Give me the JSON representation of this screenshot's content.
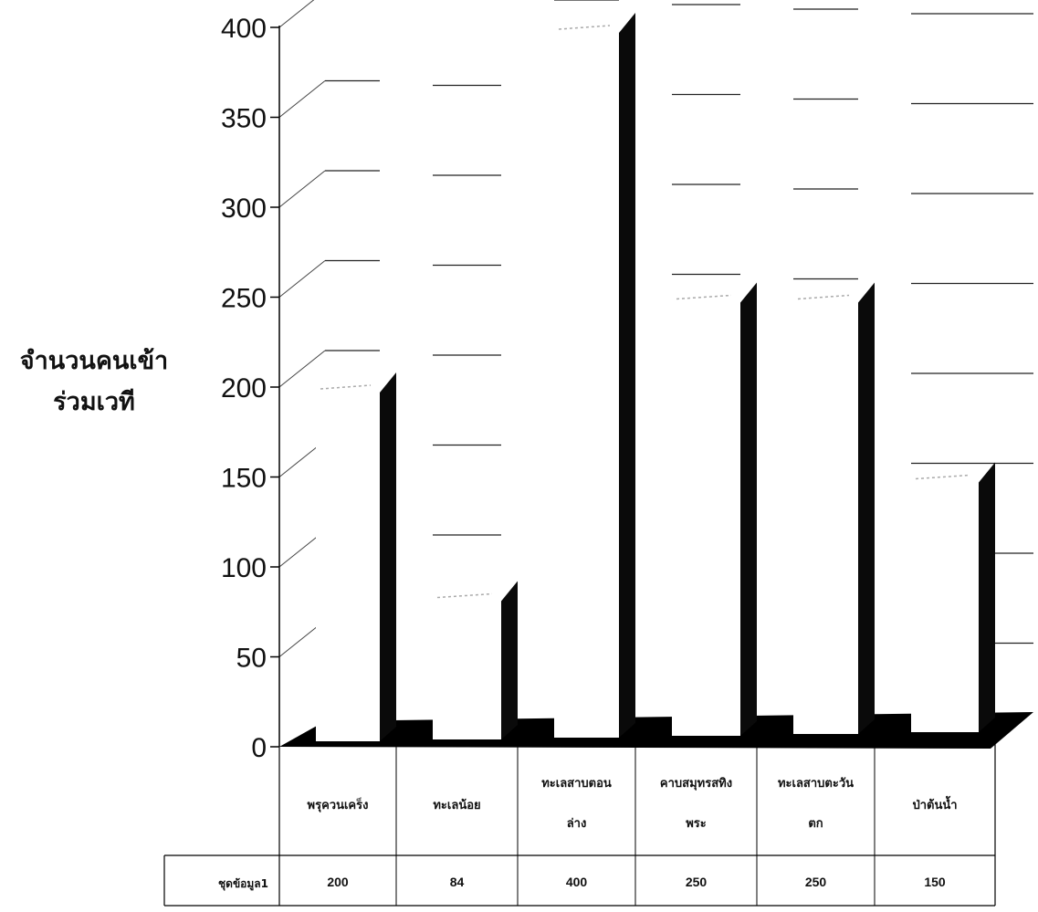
{
  "chart_data": {
    "type": "bar",
    "ylabel": [
      "จำนวนคนเข้า",
      "ร่วมเวที"
    ],
    "ylim": [
      0,
      400
    ],
    "yticks": [
      0,
      50,
      100,
      150,
      200,
      250,
      300,
      350,
      400
    ],
    "categories": [
      [
        "พรุควนเคร็ง"
      ],
      [
        "ทะเลน้อย"
      ],
      [
        "ทะเลสาบตอน",
        "ล่าง"
      ],
      [
        "คาบสมุทรสทิง",
        "พระ"
      ],
      [
        "ทะเลสาบตะวัน",
        "ตก"
      ],
      [
        "ป่าต้นน้ำ"
      ]
    ],
    "series": [
      {
        "name": "ชุดข้อมูล1",
        "values": [
          200,
          84,
          400,
          250,
          250,
          150
        ]
      }
    ],
    "grid": true,
    "data_table": true
  }
}
